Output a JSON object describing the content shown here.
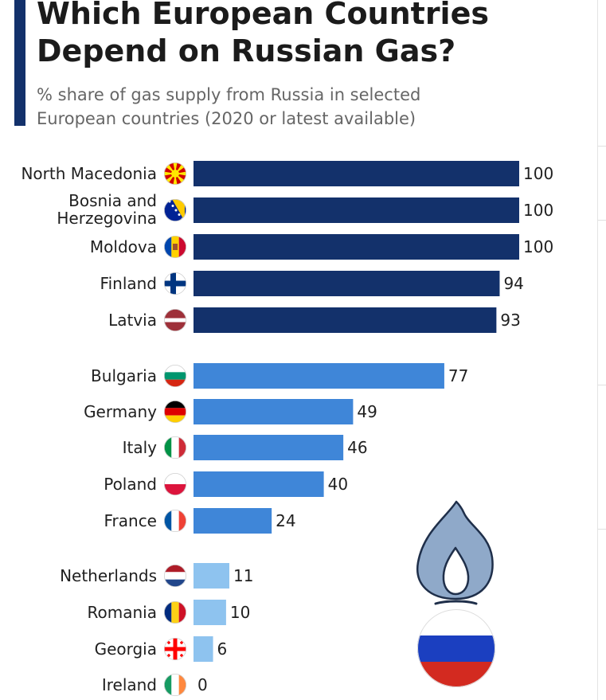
{
  "header": {
    "title_line1": "Which European Countries",
    "title_line2": "Depend on Russian Gas?",
    "subtitle_line1": "% share of gas supply from Russia in selected",
    "subtitle_line2": "European countries (2020 or latest available)"
  },
  "colors": {
    "accent": "#13316b",
    "tier_high": "#13316b",
    "tier_mid": "#3f86d8",
    "tier_low": "#8ec3ef",
    "flame": "#8fa9c9",
    "russia_white": "#ffffff",
    "russia_blue": "#1b3fc0",
    "russia_red": "#d32a20"
  },
  "chart_data": {
    "type": "bar",
    "orientation": "horizontal",
    "title": "Which European Countries Depend on Russian Gas?",
    "subtitle": "% share of gas supply from Russia in selected European countries (2020 or latest available)",
    "xlim": [
      0,
      100
    ],
    "grid": false,
    "categories": [
      [
        "North Macedonia"
      ],
      [
        "Bosnia and",
        "Herzegovina"
      ],
      [
        "Moldova"
      ],
      [
        "Finland"
      ],
      [
        "Latvia"
      ],
      [
        "Bulgaria"
      ],
      [
        "Germany"
      ],
      [
        "Italy"
      ],
      [
        "Poland"
      ],
      [
        "France"
      ],
      [
        "Netherlands"
      ],
      [
        "Romania"
      ],
      [
        "Georgia"
      ],
      [
        "Ireland"
      ]
    ],
    "values": [
      100,
      100,
      100,
      94,
      93,
      77,
      49,
      46,
      40,
      24,
      11,
      10,
      6,
      0
    ],
    "tiers": [
      "high",
      "high",
      "high",
      "high",
      "high",
      "mid",
      "mid",
      "mid",
      "mid",
      "mid",
      "low",
      "low",
      "low",
      "low"
    ],
    "flags": [
      "north-macedonia-flag-icon",
      "bosnia-flag-icon",
      "moldova-flag-icon",
      "finland-flag-icon",
      "latvia-flag-icon",
      "bulgaria-flag-icon",
      "germany-flag-icon",
      "italy-flag-icon",
      "poland-flag-icon",
      "france-flag-icon",
      "netherlands-flag-icon",
      "romania-flag-icon",
      "georgia-flag-icon",
      "ireland-flag-icon"
    ]
  },
  "decor": {
    "flame_icon": "gas-flame-icon",
    "russia_flag_icon": "russia-flag-icon"
  }
}
